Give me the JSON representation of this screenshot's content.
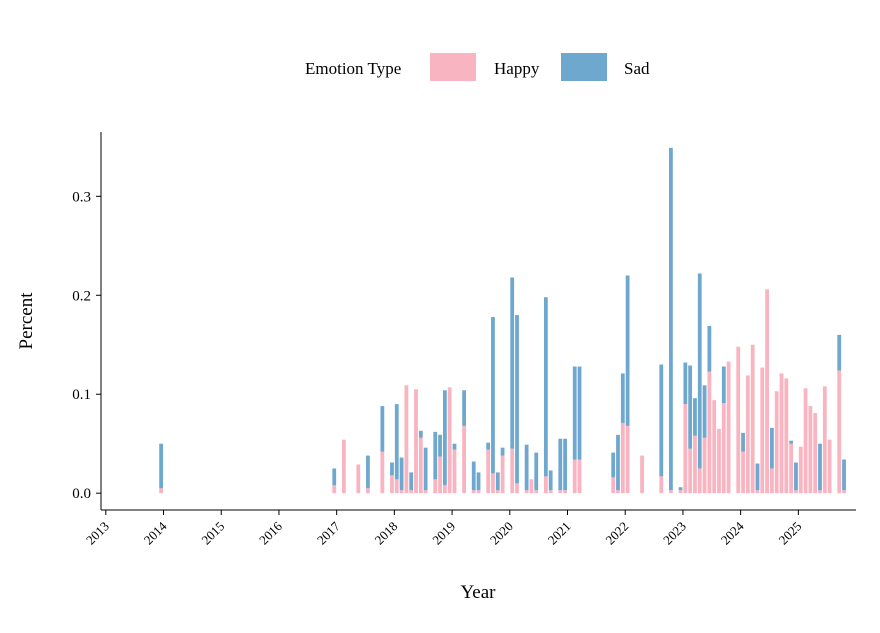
{
  "chart_data": {
    "type": "bar",
    "stacked": true,
    "xlabel": "Year",
    "ylabel": "Percent",
    "legend": {
      "title": "Emotion Type",
      "placement": "top-center",
      "entries": [
        "Happy",
        "Sad"
      ]
    },
    "colors": {
      "Happy": "#F8B4C0",
      "Sad": "#6FA8CF"
    },
    "xlim": [
      "2012-12-01",
      "2025-12-31"
    ],
    "ylim": [
      -0.017,
      0.365
    ],
    "x_ticks": [
      "2013",
      "2014",
      "2015",
      "2016",
      "2017",
      "2018",
      "2019",
      "2020",
      "2021",
      "2022",
      "2023",
      "2024",
      "2025"
    ],
    "y_ticks": [
      "0.0",
      "0.1",
      "0.2",
      "0.3"
    ],
    "series": [
      {
        "name": "Happy",
        "points": [
          [
            "2013-12",
            0.005
          ],
          [
            "2016-12",
            0.008
          ],
          [
            "2017-02",
            0.054
          ],
          [
            "2017-05",
            0.029
          ],
          [
            "2017-07",
            0.005
          ],
          [
            "2017-10",
            0.042
          ],
          [
            "2017-12",
            0.018
          ],
          [
            "2018-01",
            0.014
          ],
          [
            "2018-02",
            0.003
          ],
          [
            "2018-03",
            0.109
          ],
          [
            "2018-04",
            0.003
          ],
          [
            "2018-05",
            0.105
          ],
          [
            "2018-06",
            0.056
          ],
          [
            "2018-07",
            0.003
          ],
          [
            "2018-09",
            0.014
          ],
          [
            "2018-10",
            0.037
          ],
          [
            "2018-11",
            0.008
          ],
          [
            "2018-12",
            0.107
          ],
          [
            "2019-01",
            0.044
          ],
          [
            "2019-03",
            0.068
          ],
          [
            "2019-05",
            0.003
          ],
          [
            "2019-06",
            0.003
          ],
          [
            "2019-08",
            0.044
          ],
          [
            "2019-09",
            0.02
          ],
          [
            "2019-10",
            0.003
          ],
          [
            "2019-11",
            0.038
          ],
          [
            "2020-01",
            0.045
          ],
          [
            "2020-02",
            0.01
          ],
          [
            "2020-04",
            0.003
          ],
          [
            "2020-05",
            0.014
          ],
          [
            "2020-06",
            0.003
          ],
          [
            "2020-08",
            0.017
          ],
          [
            "2020-09",
            0.003
          ],
          [
            "2020-11",
            0.003
          ],
          [
            "2020-12",
            0.003
          ],
          [
            "2021-02",
            0.034
          ],
          [
            "2021-03",
            0.034
          ],
          [
            "2021-10",
            0.016
          ],
          [
            "2021-11",
            0.003
          ],
          [
            "2021-12",
            0.071
          ],
          [
            "2022-01",
            0.068
          ],
          [
            "2022-04",
            0.038
          ],
          [
            "2022-08",
            0.017
          ],
          [
            "2022-10",
            0.003
          ],
          [
            "2022-12",
            0.003
          ],
          [
            "2023-01",
            0.09
          ],
          [
            "2023-02",
            0.045
          ],
          [
            "2023-03",
            0.058
          ],
          [
            "2023-04",
            0.025
          ],
          [
            "2023-05",
            0.056
          ],
          [
            "2023-06",
            0.123
          ],
          [
            "2023-07",
            0.094
          ],
          [
            "2023-08",
            0.065
          ],
          [
            "2023-09",
            0.091
          ],
          [
            "2023-10",
            0.133
          ],
          [
            "2023-12",
            0.148
          ],
          [
            "2024-01",
            0.042
          ],
          [
            "2024-02",
            0.119
          ],
          [
            "2024-03",
            0.15
          ],
          [
            "2024-04",
            0.003
          ],
          [
            "2024-05",
            0.127
          ],
          [
            "2024-06",
            0.206
          ],
          [
            "2024-07",
            0.025
          ],
          [
            "2024-08",
            0.103
          ],
          [
            "2024-09",
            0.121
          ],
          [
            "2024-10",
            0.116
          ],
          [
            "2024-11",
            0.05
          ],
          [
            "2024-12",
            0.003
          ],
          [
            "2025-01",
            0.047
          ],
          [
            "2025-02",
            0.106
          ],
          [
            "2025-03",
            0.088
          ],
          [
            "2025-04",
            0.081
          ],
          [
            "2025-05",
            0.003
          ],
          [
            "2025-06",
            0.108
          ],
          [
            "2025-07",
            0.054
          ],
          [
            "2025-09",
            0.124
          ],
          [
            "2025-10",
            0.003
          ]
        ]
      },
      {
        "name": "Sad",
        "points": [
          [
            "2013-12",
            0.045
          ],
          [
            "2016-12",
            0.017
          ],
          [
            "2017-02",
            0.0
          ],
          [
            "2017-05",
            0.0
          ],
          [
            "2017-07",
            0.033
          ],
          [
            "2017-10",
            0.046
          ],
          [
            "2017-12",
            0.013
          ],
          [
            "2018-01",
            0.076
          ],
          [
            "2018-02",
            0.033
          ],
          [
            "2018-03",
            0.0
          ],
          [
            "2018-04",
            0.018
          ],
          [
            "2018-05",
            0.0
          ],
          [
            "2018-06",
            0.007
          ],
          [
            "2018-07",
            0.043
          ],
          [
            "2018-09",
            0.048
          ],
          [
            "2018-10",
            0.022
          ],
          [
            "2018-11",
            0.096
          ],
          [
            "2018-12",
            0.0
          ],
          [
            "2019-01",
            0.006
          ],
          [
            "2019-03",
            0.036
          ],
          [
            "2019-05",
            0.029
          ],
          [
            "2019-06",
            0.018
          ],
          [
            "2019-08",
            0.007
          ],
          [
            "2019-09",
            0.158
          ],
          [
            "2019-10",
            0.018
          ],
          [
            "2019-11",
            0.008
          ],
          [
            "2020-01",
            0.173
          ],
          [
            "2020-02",
            0.17
          ],
          [
            "2020-04",
            0.046
          ],
          [
            "2020-05",
            0.0
          ],
          [
            "2020-06",
            0.038
          ],
          [
            "2020-08",
            0.181
          ],
          [
            "2020-09",
            0.02
          ],
          [
            "2020-11",
            0.052
          ],
          [
            "2020-12",
            0.052
          ],
          [
            "2021-02",
            0.094
          ],
          [
            "2021-03",
            0.094
          ],
          [
            "2021-10",
            0.025
          ],
          [
            "2021-11",
            0.056
          ],
          [
            "2021-12",
            0.05
          ],
          [
            "2022-01",
            0.152
          ],
          [
            "2022-04",
            0.0
          ],
          [
            "2022-08",
            0.113
          ],
          [
            "2022-10",
            0.346
          ],
          [
            "2022-12",
            0.003
          ],
          [
            "2023-01",
            0.042
          ],
          [
            "2023-02",
            0.084
          ],
          [
            "2023-03",
            0.038
          ],
          [
            "2023-04",
            0.197
          ],
          [
            "2023-05",
            0.053
          ],
          [
            "2023-06",
            0.046
          ],
          [
            "2023-07",
            0.0
          ],
          [
            "2023-08",
            0.0
          ],
          [
            "2023-09",
            0.037
          ],
          [
            "2023-10",
            0.0
          ],
          [
            "2023-12",
            0.0
          ],
          [
            "2024-01",
            0.019
          ],
          [
            "2024-02",
            0.0
          ],
          [
            "2024-03",
            0.0
          ],
          [
            "2024-04",
            0.027
          ],
          [
            "2024-05",
            0.0
          ],
          [
            "2024-06",
            0.0
          ],
          [
            "2024-07",
            0.041
          ],
          [
            "2024-08",
            0.0
          ],
          [
            "2024-09",
            0.0
          ],
          [
            "2024-10",
            0.0
          ],
          [
            "2024-11",
            0.003
          ],
          [
            "2024-12",
            0.028
          ],
          [
            "2025-01",
            0.0
          ],
          [
            "2025-02",
            0.0
          ],
          [
            "2025-03",
            0.0
          ],
          [
            "2025-04",
            0.0
          ],
          [
            "2025-05",
            0.047
          ],
          [
            "2025-06",
            0.0
          ],
          [
            "2025-07",
            0.0
          ],
          [
            "2025-09",
            0.036
          ],
          [
            "2025-10",
            0.031
          ]
        ]
      }
    ]
  }
}
